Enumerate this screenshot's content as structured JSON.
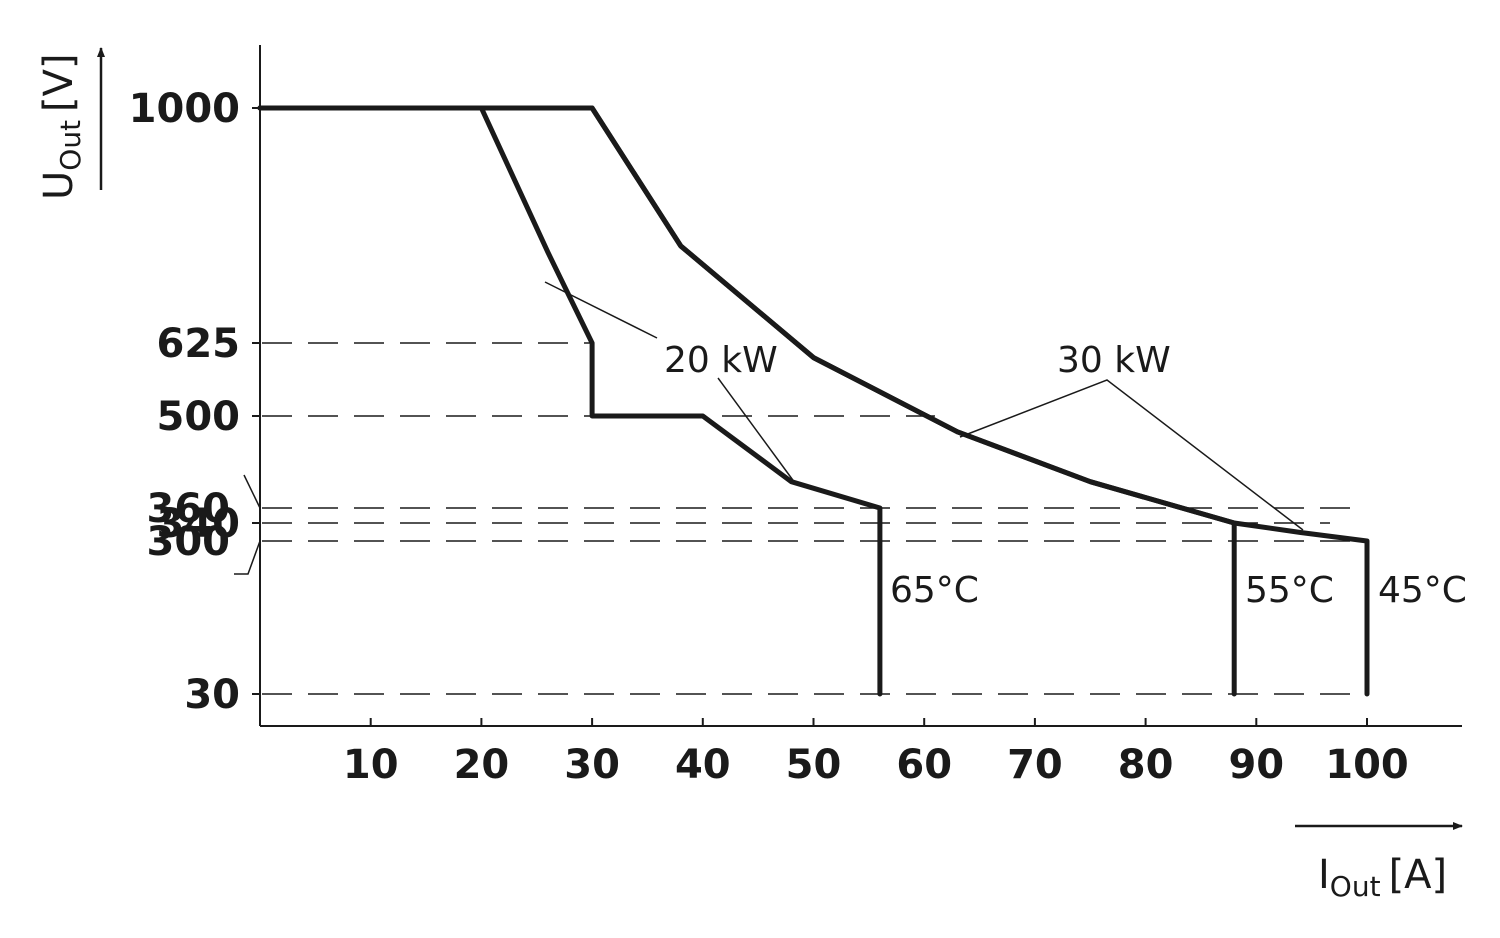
{
  "chart_data": {
    "type": "line",
    "title": "",
    "xlabel": {
      "main": "I",
      "sub": "Out",
      "unit": "[A]"
    },
    "ylabel": {
      "main": "U",
      "sub": "Out",
      "unit": "[V]"
    },
    "x_ticks": [
      10,
      20,
      30,
      40,
      50,
      60,
      70,
      80,
      90,
      100
    ],
    "y_ticks": [
      {
        "label": "1000",
        "value": 1000
      },
      {
        "label": "625",
        "value": 625
      },
      {
        "label": "500",
        "value": 500
      },
      {
        "label": "360",
        "value": 360
      },
      {
        "label": "340",
        "value": 340
      },
      {
        "label": "300",
        "value": 300
      },
      {
        "label": "30",
        "value": 30
      }
    ],
    "xlim": [
      0,
      108
    ],
    "grid": "dashed reference lines at 30, 300, 340, 360, 500, 625 V",
    "series": [
      {
        "name": "65°C",
        "points": [
          [
            0,
            1000
          ],
          [
            20,
            1000
          ],
          [
            26,
            770
          ],
          [
            30,
            625
          ],
          [
            30,
            500
          ],
          [
            40,
            500
          ],
          [
            48,
            400
          ],
          [
            56,
            360
          ],
          [
            56,
            30
          ]
        ]
      },
      {
        "name": "55°C",
        "points": [
          [
            0,
            1000
          ],
          [
            30,
            1000
          ],
          [
            38,
            780
          ],
          [
            50,
            600
          ],
          [
            63,
            476
          ],
          [
            75,
            400
          ],
          [
            88,
            340
          ],
          [
            88,
            30
          ]
        ]
      },
      {
        "name": "45°C",
        "points": [
          [
            0,
            1000
          ],
          [
            30,
            1000
          ],
          [
            38,
            780
          ],
          [
            50,
            600
          ],
          [
            63,
            476
          ],
          [
            75,
            400
          ],
          [
            88,
            340
          ],
          [
            94,
            319
          ],
          [
            100,
            300
          ],
          [
            100,
            30
          ]
        ]
      }
    ],
    "annotations": [
      {
        "text": "20 kW"
      },
      {
        "text": "30 kW"
      },
      {
        "text": "65°C"
      },
      {
        "text": "55°C"
      },
      {
        "text": "45°C"
      }
    ]
  }
}
